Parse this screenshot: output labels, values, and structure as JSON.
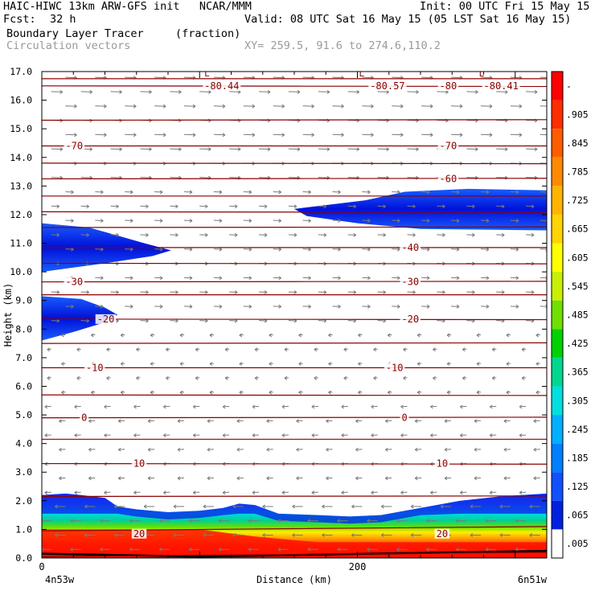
{
  "header": {
    "title_left": "HAIC-HIWC 13km ARW-GFS init   NCAR/MMM",
    "init": "Init: 00 UTC Fri 15 May 15",
    "fcst_label": "Fcst:",
    "fcst_value": "32 h",
    "valid": "Valid: 08 UTC Sat 16 May 15 (05 LST Sat 16 May 15)",
    "field_name": "Boundary Layer Tracer",
    "field_units": "(fraction)",
    "vectors_label": "Circulation vectors",
    "xy_range": "XY= 259.5, 91.6 to 274.6,110.2"
  },
  "chart_data": {
    "type": "heatmap",
    "xlabel": "Distance (km)",
    "ylabel": "Height (km)",
    "xlim": [
      0,
      320
    ],
    "ylim": [
      0,
      17
    ],
    "x_ticks": [
      0,
      200
    ],
    "y_ticks": [
      0.0,
      1.0,
      2.0,
      3.0,
      4.0,
      5.0,
      6.0,
      7.0,
      8.0,
      9.0,
      10.0,
      11.0,
      12.0,
      13.0,
      14.0,
      15.0,
      16.0,
      17.0
    ],
    "x_end_labels": {
      "left": "4n53w",
      "right": "6n51w"
    },
    "colorbar": {
      "labels": [
        "-",
        ".905",
        ".845",
        ".785",
        ".725",
        ".665",
        ".605",
        ".545",
        ".485",
        ".425",
        ".365",
        ".305",
        ".245",
        ".185",
        ".125",
        ".065",
        ".005"
      ],
      "colors": [
        "#ff0000",
        "#ff2e00",
        "#ff5c00",
        "#ff8a00",
        "#ffb400",
        "#ffd400",
        "#ffff00",
        "#c8f000",
        "#70e000",
        "#00d200",
        "#00d890",
        "#00e0e0",
        "#00b0ff",
        "#0080ff",
        "#1050ff",
        "#0020e0",
        "#ffffff"
      ]
    },
    "temperature_contours": {
      "color": "#8b0000",
      "levels_km": [
        0.05,
        0.95,
        2.15,
        3.3,
        4.15,
        4.9,
        5.7,
        6.65,
        7.5,
        8.35,
        9.2,
        9.65,
        10.3,
        10.85,
        11.55,
        12.1,
        12.65,
        13.25,
        13.8,
        14.4,
        15.3,
        16.5,
        16.75
      ],
      "labels": [
        {
          "text": "20",
          "x": 58,
          "y": 0.85
        },
        {
          "text": "20",
          "x": 250,
          "y": 0.85
        },
        {
          "text": "10",
          "x": 58,
          "y": 3.3
        },
        {
          "text": "10",
          "x": 250,
          "y": 3.3
        },
        {
          "text": "0",
          "x": 25,
          "y": 4.9
        },
        {
          "text": "0",
          "x": 228,
          "y": 4.9
        },
        {
          "text": "-10",
          "x": 28,
          "y": 6.65
        },
        {
          "text": "-10",
          "x": 218,
          "y": 6.65
        },
        {
          "text": "-20",
          "x": 35,
          "y": 8.35
        },
        {
          "text": "-20",
          "x": 228,
          "y": 8.35
        },
        {
          "text": "-30",
          "x": 15,
          "y": 9.65
        },
        {
          "text": "-30",
          "x": 228,
          "y": 9.65
        },
        {
          "text": "-40",
          "x": 228,
          "y": 10.85
        },
        {
          "text": "-60",
          "x": 252,
          "y": 13.25
        },
        {
          "text": "-70",
          "x": 15,
          "y": 14.4
        },
        {
          "text": "-70",
          "x": 252,
          "y": 14.4
        },
        {
          "text": "-80",
          "x": 252,
          "y": 16.5
        },
        {
          "text": "-80.44",
          "x": 103,
          "y": 16.5
        },
        {
          "text": "-80.57",
          "x": 208,
          "y": 16.5
        },
        {
          "text": "-80.41",
          "x": 280,
          "y": 16.5
        }
      ],
      "low_markers": [
        {
          "text": "L",
          "x": 103,
          "y": 16.95
        },
        {
          "text": "L",
          "x": 201,
          "y": 16.95
        },
        {
          "text": "L",
          "x": 277,
          "y": 16.95
        }
      ]
    }
  }
}
